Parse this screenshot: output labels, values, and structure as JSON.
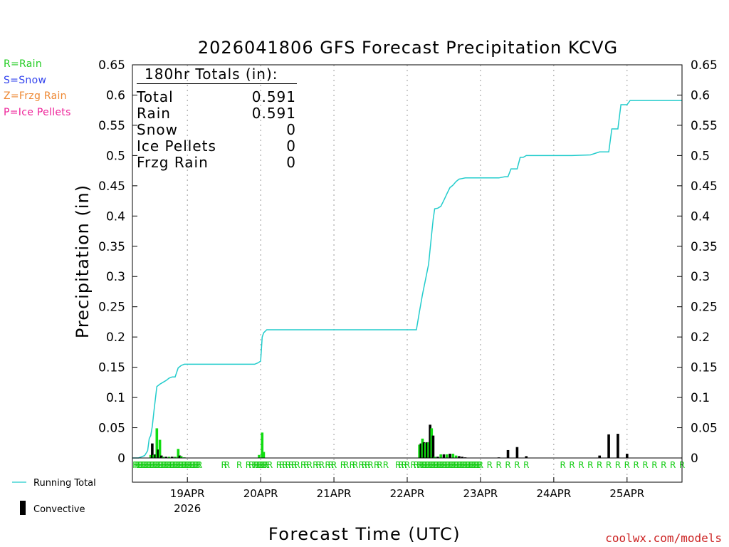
{
  "chart_data": {
    "type": "bar+line",
    "title": "2026041806 GFS Forecast Precipitation KCVG",
    "xlabel": "Forecast Time (UTC)",
    "ylabel": "Precipitation (in)",
    "ylim": [
      0,
      0.65
    ],
    "y_ticks": [
      "0",
      "0.05",
      "0.1",
      "0.15",
      "0.2",
      "0.25",
      "0.3",
      "0.35",
      "0.4",
      "0.45",
      "0.5",
      "0.55",
      "0.6",
      "0.65"
    ],
    "x_range_hours": [
      6,
      186
    ],
    "x_ticks": [
      {
        "hour": 24,
        "label": "19APR",
        "sublabel": "2026"
      },
      {
        "hour": 48,
        "label": "20APR",
        "sublabel": ""
      },
      {
        "hour": 72,
        "label": "21APR",
        "sublabel": ""
      },
      {
        "hour": 96,
        "label": "22APR",
        "sublabel": ""
      },
      {
        "hour": 120,
        "label": "23APR",
        "sublabel": ""
      },
      {
        "hour": 144,
        "label": "24APR",
        "sublabel": ""
      },
      {
        "hour": 168,
        "label": "25APR",
        "sublabel": ""
      }
    ],
    "grid": "vertical dotted at day boundaries",
    "type_legend": [
      {
        "label": "R=Rain",
        "color": "#22cc22"
      },
      {
        "label": "S=Snow",
        "color": "#3344ee"
      },
      {
        "label": "Z=Frzg Rain",
        "color": "#ee8833"
      },
      {
        "label": "P=Ice Pellets",
        "color": "#ee2299"
      }
    ],
    "series_legend": {
      "running_total": "Running Total",
      "convective": "Convective"
    },
    "totals": {
      "header": "180hr Totals (in):",
      "rows": [
        {
          "label": "Total",
          "value": "0.591"
        },
        {
          "label": "Rain",
          "value": "0.591"
        },
        {
          "label": "Snow",
          "value": "0"
        },
        {
          "label": "Ice Pellets",
          "value": "0"
        },
        {
          "label": "Frzg Rain",
          "value": "0"
        }
      ]
    },
    "running_total": [
      [
        6,
        0
      ],
      [
        8,
        0
      ],
      [
        9,
        0.002
      ],
      [
        10,
        0.004
      ],
      [
        11,
        0.012
      ],
      [
        11.5,
        0.032
      ],
      [
        12,
        0.037
      ],
      [
        12.5,
        0.052
      ],
      [
        13,
        0.075
      ],
      [
        14,
        0.118
      ],
      [
        15,
        0.122
      ],
      [
        16,
        0.125
      ],
      [
        17,
        0.128
      ],
      [
        18,
        0.132
      ],
      [
        19,
        0.134
      ],
      [
        20,
        0.134
      ],
      [
        21,
        0.149
      ],
      [
        22,
        0.153
      ],
      [
        23,
        0.155
      ],
      [
        24,
        0.155
      ],
      [
        35,
        0.155
      ],
      [
        40,
        0.155
      ],
      [
        44,
        0.155
      ],
      [
        46,
        0.155
      ],
      [
        47,
        0.157
      ],
      [
        48,
        0.16
      ],
      [
        48.5,
        0.2
      ],
      [
        49,
        0.207
      ],
      [
        50,
        0.212
      ],
      [
        60,
        0.212
      ],
      [
        96,
        0.212
      ],
      [
        99,
        0.212
      ],
      [
        100,
        0.242
      ],
      [
        101,
        0.27
      ],
      [
        102,
        0.295
      ],
      [
        103,
        0.32
      ],
      [
        104,
        0.37
      ],
      [
        104.5,
        0.395
      ],
      [
        105,
        0.412
      ],
      [
        106,
        0.413
      ],
      [
        107,
        0.416
      ],
      [
        108,
        0.426
      ],
      [
        109,
        0.437
      ],
      [
        110,
        0.447
      ],
      [
        111,
        0.451
      ],
      [
        112,
        0.457
      ],
      [
        113,
        0.461
      ],
      [
        114,
        0.462
      ],
      [
        115,
        0.463
      ],
      [
        120,
        0.463
      ],
      [
        126,
        0.463
      ],
      [
        128,
        0.465
      ],
      [
        129,
        0.465
      ],
      [
        130,
        0.478
      ],
      [
        131,
        0.478
      ],
      [
        132,
        0.478
      ],
      [
        133,
        0.497
      ],
      [
        134,
        0.497
      ],
      [
        135,
        0.5
      ],
      [
        150,
        0.5
      ],
      [
        156,
        0.501
      ],
      [
        159,
        0.506
      ],
      [
        162,
        0.506
      ],
      [
        163,
        0.544
      ],
      [
        165,
        0.544
      ],
      [
        166,
        0.584
      ],
      [
        168,
        0.584
      ],
      [
        169,
        0.591
      ],
      [
        186,
        0.591
      ]
    ],
    "bars": [
      {
        "hour": 12,
        "value": 0.005,
        "convective": false
      },
      {
        "hour": 12.5,
        "value": 0.024,
        "convective": true
      },
      {
        "hour": 13,
        "value": 0.005,
        "convective": false
      },
      {
        "hour": 13.5,
        "value": 0.006,
        "convective": true
      },
      {
        "hour": 14,
        "value": 0.049,
        "convective": false
      },
      {
        "hour": 14.5,
        "value": 0.014,
        "convective": true
      },
      {
        "hour": 15,
        "value": 0.03,
        "convective": false
      },
      {
        "hour": 15.5,
        "value": 0.004,
        "convective": true
      },
      {
        "hour": 16,
        "value": 0.002,
        "convective": false
      },
      {
        "hour": 17,
        "value": 0.002,
        "convective": true
      },
      {
        "hour": 18,
        "value": 0.002,
        "convective": false
      },
      {
        "hour": 19,
        "value": 0.002,
        "convective": true
      },
      {
        "hour": 20,
        "value": 0.002,
        "convective": false
      },
      {
        "hour": 21,
        "value": 0.015,
        "convective": false
      },
      {
        "hour": 21.5,
        "value": 0.004,
        "convective": true
      },
      {
        "hour": 22,
        "value": 0.003,
        "convective": false
      },
      {
        "hour": 23,
        "value": 0.001,
        "convective": false
      },
      {
        "hour": 47.5,
        "value": 0.005,
        "convective": false
      },
      {
        "hour": 48.5,
        "value": 0.042,
        "convective": false
      },
      {
        "hour": 49,
        "value": 0.01,
        "convective": false
      },
      {
        "hour": 100,
        "value": 0.022,
        "convective": false
      },
      {
        "hour": 100.5,
        "value": 0.024,
        "convective": true
      },
      {
        "hour": 101,
        "value": 0.032,
        "convective": false
      },
      {
        "hour": 101.5,
        "value": 0.026,
        "convective": true
      },
      {
        "hour": 102,
        "value": 0.025,
        "convective": false
      },
      {
        "hour": 102.5,
        "value": 0.026,
        "convective": true
      },
      {
        "hour": 103,
        "value": 0.026,
        "convective": false
      },
      {
        "hour": 103.5,
        "value": 0.055,
        "convective": true
      },
      {
        "hour": 104,
        "value": 0.049,
        "convective": false
      },
      {
        "hour": 104.5,
        "value": 0.037,
        "convective": true
      },
      {
        "hour": 105,
        "value": 0.002,
        "convective": false
      },
      {
        "hour": 106,
        "value": 0.002,
        "convective": true
      },
      {
        "hour": 107,
        "value": 0.006,
        "convective": false
      },
      {
        "hour": 108,
        "value": 0.006,
        "convective": true
      },
      {
        "hour": 109,
        "value": 0.006,
        "convective": false
      },
      {
        "hour": 110,
        "value": 0.007,
        "convective": true
      },
      {
        "hour": 111,
        "value": 0.007,
        "convective": false
      },
      {
        "hour": 112,
        "value": 0.004,
        "convective": false
      },
      {
        "hour": 113,
        "value": 0.003,
        "convective": true
      },
      {
        "hour": 114,
        "value": 0.002,
        "convective": true
      },
      {
        "hour": 115,
        "value": 0.001,
        "convective": true
      },
      {
        "hour": 126,
        "value": 0.001,
        "convective": true
      },
      {
        "hour": 129,
        "value": 0.013,
        "convective": true
      },
      {
        "hour": 132,
        "value": 0.018,
        "convective": true
      },
      {
        "hour": 135,
        "value": 0.003,
        "convective": true
      },
      {
        "hour": 159,
        "value": 0.004,
        "convective": true
      },
      {
        "hour": 162,
        "value": 0.039,
        "convective": true
      },
      {
        "hour": 165,
        "value": 0.04,
        "convective": true
      },
      {
        "hour": 168,
        "value": 0.007,
        "convective": true
      }
    ],
    "type_markers": {
      "letter": "R",
      "hours": [
        7,
        7.5,
        8,
        8.5,
        9,
        9.5,
        10,
        10.5,
        11,
        11.5,
        12,
        12.5,
        13,
        13.5,
        14,
        14.5,
        15,
        15.5,
        16,
        16.5,
        17,
        17.5,
        18,
        18.5,
        19,
        19.5,
        20,
        20.5,
        21,
        21.5,
        22,
        22.5,
        23,
        23.5,
        24,
        24.5,
        25,
        25.5,
        26,
        26.5,
        27,
        27.5,
        28,
        36,
        37,
        41,
        44,
        45,
        46,
        46.5,
        47,
        47.5,
        48,
        48.5,
        49,
        49.5,
        50,
        51,
        54,
        55,
        56,
        57,
        58,
        59,
        60,
        62,
        63,
        64,
        66,
        67,
        68,
        70,
        71,
        72,
        75,
        76,
        78,
        79,
        81,
        82,
        83,
        84,
        86,
        87,
        89,
        93,
        94,
        95,
        96,
        98,
        99,
        100,
        100.5,
        101,
        101.5,
        102,
        102.5,
        103,
        103.5,
        104,
        104.5,
        105,
        105.5,
        106,
        106.5,
        107,
        107.5,
        108,
        108.5,
        109,
        109.5,
        110,
        110.5,
        111,
        111.5,
        112,
        112.5,
        113,
        113.5,
        114,
        114.5,
        115,
        115.5,
        116,
        116.5,
        117,
        117.5,
        118,
        118.5,
        119,
        119.5,
        120,
        123,
        126,
        129,
        132,
        135,
        147,
        150,
        153,
        156,
        159,
        162,
        165,
        168,
        171,
        174,
        177,
        180,
        183,
        186
      ]
    },
    "source": "coolwx.com/models"
  }
}
